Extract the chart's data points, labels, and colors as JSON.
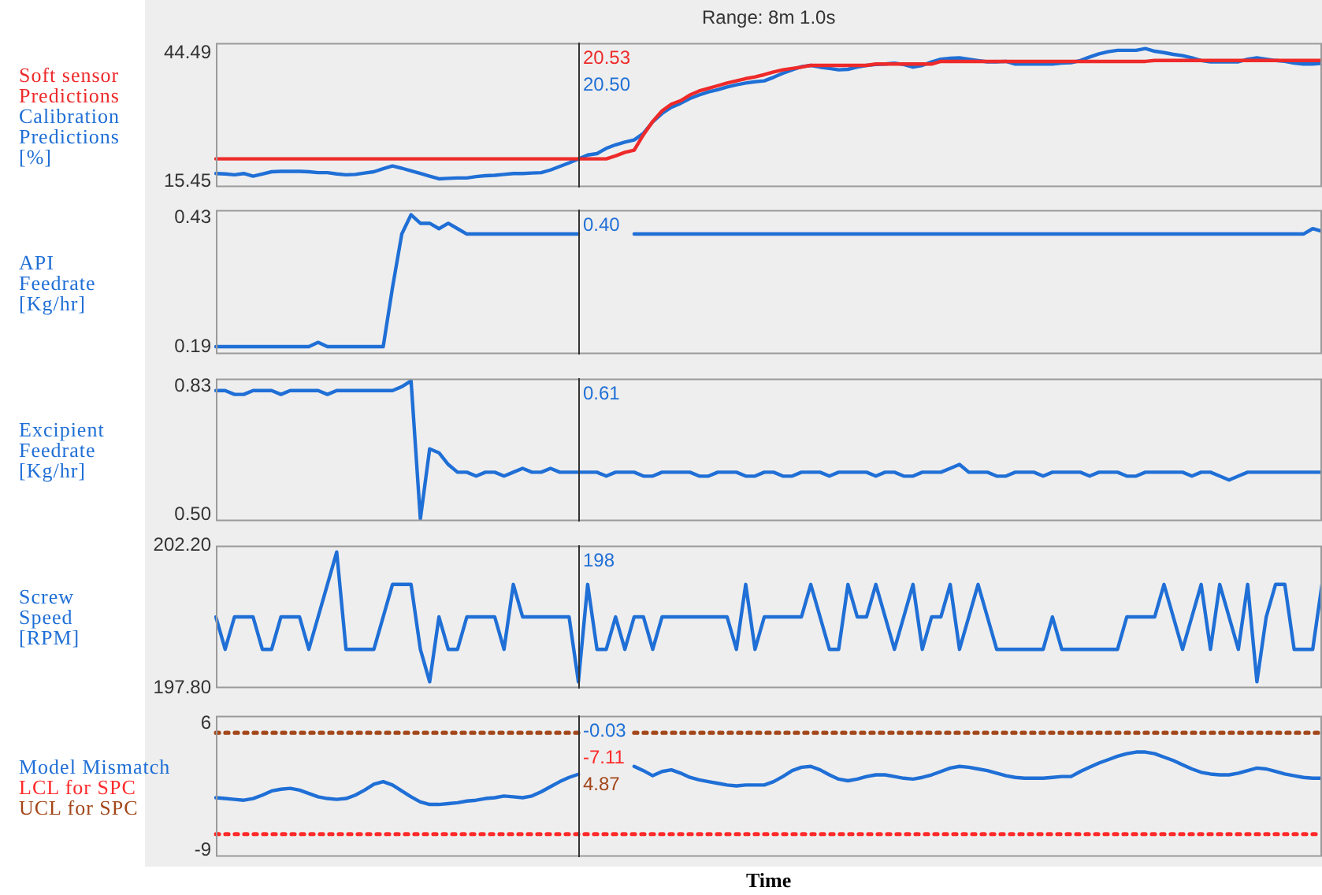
{
  "chart_data": [
    {
      "type": "line",
      "title": "Range: 8m 1.0s",
      "ylabel": "[%]",
      "legend": "left",
      "tick_labels": "y",
      "categories": [
        null,
        null,
        null,
        null,
        null,
        null,
        null,
        null,
        null,
        null,
        null,
        null,
        null,
        null,
        null,
        null,
        null,
        null,
        null,
        null,
        null,
        null,
        null,
        null,
        null,
        null,
        null,
        null,
        null,
        null,
        null,
        null,
        null,
        null,
        null,
        null,
        null,
        null,
        null,
        null,
        null,
        null,
        null,
        null,
        null,
        null,
        null,
        null,
        null,
        null,
        null,
        null,
        null,
        null,
        null,
        null,
        null,
        null,
        null,
        null,
        null,
        null,
        null,
        null,
        null,
        null,
        null,
        null,
        null,
        null,
        null,
        null,
        null,
        null,
        null,
        null,
        null,
        null,
        null,
        null,
        null,
        null,
        null,
        null,
        null,
        null,
        null,
        null,
        null,
        null,
        null,
        null,
        null,
        null,
        null,
        null,
        null,
        null,
        null,
        null,
        null,
        null,
        null,
        null,
        null,
        null,
        null,
        null,
        null,
        null,
        null,
        null,
        null,
        null,
        null,
        null,
        null,
        null,
        null,
        null
      ],
      "ylim": [
        14.1,
        46.8
      ],
      "yticks": [
        15.45,
        44.49
      ],
      "series": [
        {
          "name": "Soft sensor Predictions",
          "color": "#ee2a2a",
          "values": [
            20.53,
            20.53,
            20.53,
            20.53,
            20.53,
            20.53,
            20.53,
            20.53,
            20.53,
            20.53,
            20.53,
            20.53,
            20.53,
            20.53,
            20.53,
            20.53,
            20.53,
            20.53,
            20.53,
            20.53,
            20.53,
            20.53,
            20.53,
            20.53,
            20.53,
            20.53,
            20.53,
            20.53,
            20.53,
            20.53,
            20.53,
            20.53,
            20.53,
            20.53,
            20.53,
            20.53,
            20.53,
            20.53,
            20.53,
            20.53,
            20.53,
            20.53,
            20.53,
            21.2,
            22.0,
            22.5,
            26.0,
            29.0,
            31.4,
            32.9,
            33.7,
            35.0,
            35.9,
            36.5,
            37.1,
            37.7,
            38.2,
            38.7,
            39.1,
            39.6,
            40.2,
            40.7,
            41.0,
            41.3,
            41.7,
            41.7,
            41.7,
            41.7,
            41.7,
            41.7,
            41.7,
            42.0,
            42.0,
            42.0,
            42.0,
            42.0,
            42.0,
            42.0,
            42.6,
            42.6,
            42.6,
            42.6,
            42.6,
            42.6,
            42.6,
            42.6,
            42.6,
            42.6,
            42.6,
            42.6,
            42.6,
            42.6,
            42.6,
            42.6,
            42.6,
            42.6,
            42.6,
            42.6,
            42.6,
            42.6,
            42.6,
            42.8,
            42.8,
            42.8,
            42.8,
            42.8,
            42.8,
            42.8,
            42.8,
            42.8,
            42.8,
            42.8,
            42.8,
            42.8,
            42.8,
            42.8,
            42.8,
            42.8,
            42.8,
            42.8
          ]
        },
        {
          "name": "Calibration Predictions",
          "color": "#1f6fd6",
          "values": [
            17.2,
            17.1,
            16.9,
            17.2,
            16.6,
            17.1,
            17.6,
            17.7,
            17.7,
            17.7,
            17.6,
            17.4,
            17.4,
            17.1,
            16.9,
            17.0,
            17.3,
            17.6,
            18.3,
            18.9,
            18.4,
            17.8,
            17.2,
            16.6,
            16.0,
            16.1,
            16.2,
            16.2,
            16.5,
            16.7,
            16.8,
            17.0,
            17.2,
            17.2,
            17.3,
            17.4,
            18.0,
            18.8,
            19.6,
            20.5,
            21.4,
            21.7,
            22.9,
            23.7,
            24.3,
            24.8,
            26.3,
            28.9,
            30.8,
            32.2,
            33.1,
            34.2,
            35.0,
            35.7,
            36.2,
            36.8,
            37.3,
            37.7,
            38.0,
            38.2,
            39.0,
            39.9,
            40.7,
            41.4,
            41.7,
            41.3,
            41.0,
            40.7,
            40.8,
            41.3,
            41.7,
            41.9,
            42.0,
            42.2,
            41.9,
            41.3,
            41.7,
            42.5,
            43.1,
            43.3,
            43.4,
            43.1,
            42.8,
            42.5,
            42.5,
            42.6,
            42.0,
            42.0,
            42.0,
            42.0,
            42.0,
            42.2,
            42.3,
            42.8,
            43.6,
            44.3,
            44.8,
            45.1,
            45.1,
            45.1,
            45.5,
            44.9,
            44.6,
            44.2,
            43.9,
            43.4,
            42.8,
            42.5,
            42.5,
            42.5,
            42.5,
            43.1,
            43.4,
            43.1,
            42.8,
            42.6,
            42.2,
            42.0,
            42.0,
            42.2
          ]
        }
      ],
      "annotations": [
        "20.53",
        "20.50"
      ]
    },
    {
      "type": "line",
      "ylabel": "API Feedrate [Kg/hr]",
      "tick_labels": "y",
      "categories": [
        null,
        null,
        null,
        null,
        null,
        null,
        null,
        null,
        null,
        null,
        null,
        null,
        null,
        null,
        null,
        null,
        null,
        null,
        null,
        null,
        null,
        null,
        null,
        null,
        null,
        null,
        null,
        null,
        null,
        null,
        null,
        null,
        null,
        null,
        null,
        null,
        null,
        null,
        null,
        null,
        null,
        null,
        null,
        null,
        null,
        null,
        null,
        null,
        null,
        null,
        null,
        null,
        null,
        null,
        null,
        null,
        null,
        null,
        null,
        null,
        null,
        null,
        null,
        null,
        null,
        null,
        null,
        null,
        null,
        null,
        null,
        null,
        null,
        null,
        null,
        null,
        null,
        null,
        null,
        null,
        null,
        null,
        null,
        null,
        null,
        null,
        null,
        null,
        null,
        null,
        null,
        null,
        null,
        null,
        null,
        null,
        null,
        null,
        null,
        null,
        null,
        null,
        null,
        null,
        null,
        null,
        null,
        null,
        null,
        null,
        null,
        null,
        null,
        null,
        null,
        null,
        null,
        null,
        null,
        null
      ],
      "ylim": [
        0.176,
        0.445
      ],
      "yticks": [
        {
          "value": 0.43,
          "label": "0.43"
        },
        {
          "value": 0.19,
          "label": "0.19"
        }
      ],
      "series": [
        {
          "color": "#1f6fd6",
          "values": [
            0.19,
            0.19,
            0.19,
            0.19,
            0.19,
            0.19,
            0.19,
            0.19,
            0.19,
            0.19,
            0.19,
            0.198,
            0.19,
            0.19,
            0.19,
            0.19,
            0.19,
            0.19,
            0.19,
            0.3,
            0.4,
            0.436,
            0.42,
            0.42,
            0.41,
            0.42,
            0.41,
            0.4,
            0.4,
            0.4,
            0.4,
            0.4,
            0.4,
            0.4,
            0.4,
            0.4,
            0.4,
            0.4,
            0.4,
            0.4,
            null,
            null,
            null,
            null,
            null,
            0.4,
            0.4,
            0.4,
            0.4,
            0.4,
            0.4,
            0.4,
            0.4,
            0.4,
            0.4,
            0.4,
            0.4,
            0.4,
            0.4,
            0.4,
            0.4,
            0.4,
            0.4,
            0.4,
            0.4,
            0.4,
            0.4,
            0.4,
            0.4,
            0.4,
            0.4,
            0.4,
            0.4,
            0.4,
            0.4,
            0.4,
            0.4,
            0.4,
            0.4,
            0.4,
            0.4,
            0.4,
            0.4,
            0.4,
            0.4,
            0.4,
            0.4,
            0.4,
            0.4,
            0.4,
            0.4,
            0.4,
            0.4,
            0.4,
            0.4,
            0.4,
            0.4,
            0.4,
            0.4,
            0.4,
            0.4,
            0.4,
            0.4,
            0.4,
            0.4,
            0.4,
            0.4,
            0.4,
            0.4,
            0.4,
            0.4,
            0.4,
            0.4,
            0.4,
            0.4,
            0.4,
            0.4,
            0.4,
            0.41,
            0.405
          ]
        }
      ],
      "annotations": [
        "0.40"
      ]
    },
    {
      "type": "line",
      "ylabel": "Excipient Feedrate [Kg/hr]",
      "tick_labels": "y",
      "categories": [
        null,
        null,
        null,
        null,
        null,
        null,
        null,
        null,
        null,
        null,
        null,
        null,
        null,
        null,
        null,
        null,
        null,
        null,
        null,
        null,
        null,
        null,
        null,
        null,
        null,
        null,
        null,
        null,
        null,
        null,
        null,
        null,
        null,
        null,
        null,
        null,
        null,
        null,
        null,
        null,
        null,
        null,
        null,
        null,
        null,
        null,
        null,
        null,
        null,
        null,
        null,
        null,
        null,
        null,
        null,
        null,
        null,
        null,
        null,
        null,
        null,
        null,
        null,
        null,
        null,
        null,
        null,
        null,
        null,
        null,
        null,
        null,
        null,
        null,
        null,
        null,
        null,
        null,
        null,
        null,
        null,
        null,
        null,
        null,
        null,
        null,
        null,
        null,
        null,
        null,
        null,
        null,
        null,
        null,
        null,
        null,
        null,
        null,
        null,
        null,
        null,
        null,
        null,
        null,
        null,
        null,
        null,
        null,
        null,
        null,
        null,
        null,
        null,
        null,
        null,
        null,
        null,
        null,
        null,
        null
      ],
      "ylim": [
        0.484,
        0.851
      ],
      "yticks": [
        0.83,
        {
          "value": 0.5,
          "label": "0.50"
        }
      ],
      "series": [
        {
          "color": "#1f6fd6",
          "values": [
            0.82,
            0.82,
            0.81,
            0.81,
            0.82,
            0.82,
            0.82,
            0.81,
            0.82,
            0.82,
            0.82,
            0.82,
            0.81,
            0.82,
            0.82,
            0.82,
            0.82,
            0.82,
            0.82,
            0.82,
            0.83,
            0.845,
            0.49,
            0.67,
            0.66,
            0.63,
            0.61,
            0.61,
            0.6,
            0.61,
            0.61,
            0.6,
            0.61,
            0.62,
            0.61,
            0.61,
            0.62,
            0.61,
            0.61,
            0.61,
            0.61,
            0.61,
            0.6,
            0.61,
            0.61,
            0.61,
            0.6,
            0.6,
            0.61,
            0.61,
            0.61,
            0.61,
            0.6,
            0.6,
            0.61,
            0.61,
            0.61,
            0.6,
            0.6,
            0.61,
            0.61,
            0.6,
            0.6,
            0.61,
            0.61,
            0.61,
            0.6,
            0.61,
            0.61,
            0.61,
            0.61,
            0.6,
            0.61,
            0.61,
            0.6,
            0.6,
            0.61,
            0.61,
            0.61,
            0.62,
            0.63,
            0.61,
            0.61,
            0.61,
            0.6,
            0.6,
            0.61,
            0.61,
            0.61,
            0.6,
            0.61,
            0.61,
            0.61,
            0.61,
            0.6,
            0.61,
            0.61,
            0.61,
            0.6,
            0.6,
            0.61,
            0.61,
            0.61,
            0.61,
            0.61,
            0.6,
            0.61,
            0.61,
            0.6,
            0.59,
            0.6,
            0.61,
            0.61,
            0.61,
            0.61,
            0.61,
            0.61,
            0.61,
            0.61,
            0.61
          ]
        }
      ],
      "annotations": [
        "0.61"
      ]
    },
    {
      "type": "line",
      "ylabel": "Screw Speed [RPM]",
      "tick_labels": "y",
      "categories": [
        null,
        null,
        null,
        null,
        null,
        null,
        null,
        null,
        null,
        null,
        null,
        null,
        null,
        null,
        null,
        null,
        null,
        null,
        null,
        null,
        null,
        null,
        null,
        null,
        null,
        null,
        null,
        null,
        null,
        null,
        null,
        null,
        null,
        null,
        null,
        null,
        null,
        null,
        null,
        null,
        null,
        null,
        null,
        null,
        null,
        null,
        null,
        null,
        null,
        null,
        null,
        null,
        null,
        null,
        null,
        null,
        null,
        null,
        null,
        null,
        null,
        null,
        null,
        null,
        null,
        null,
        null,
        null,
        null,
        null,
        null,
        null,
        null,
        null,
        null,
        null,
        null,
        null,
        null,
        null,
        null,
        null,
        null,
        null,
        null,
        null,
        null,
        null,
        null,
        null,
        null,
        null,
        null,
        null,
        null,
        null,
        null,
        null,
        null,
        null,
        null,
        null,
        null,
        null,
        null,
        null,
        null,
        null,
        null,
        null,
        null,
        null,
        null,
        null,
        null,
        null,
        null,
        null,
        null,
        null
      ],
      "ylim": [
        197.8,
        202.2
      ],
      "yticks": [
        {
          "value": 202.2,
          "label": "202.20"
        },
        {
          "value": 197.8,
          "label": "197.80"
        }
      ],
      "series": [
        {
          "color": "#1f6fd6",
          "values": [
            200,
            199,
            200,
            200,
            200,
            199,
            199,
            200,
            200,
            200,
            199,
            200,
            201,
            202,
            199,
            199,
            199,
            199,
            200,
            201,
            201,
            201,
            199,
            198,
            200,
            199,
            199,
            200,
            200,
            200,
            200,
            199,
            201,
            200,
            200,
            200,
            200,
            200,
            200,
            198,
            201,
            199,
            199,
            200,
            199,
            200,
            200,
            199,
            200,
            200,
            200,
            200,
            200,
            200,
            200,
            200,
            199,
            201,
            199,
            200,
            200,
            200,
            200,
            200,
            201,
            200,
            199,
            199,
            201,
            200,
            200,
            201,
            200,
            199,
            200,
            201,
            199,
            200,
            200,
            201,
            199,
            200,
            201,
            200,
            199,
            199,
            199,
            199,
            199,
            199,
            200,
            199,
            199,
            199,
            199,
            199,
            199,
            199,
            200,
            200,
            200,
            200,
            201,
            200,
            199,
            200,
            201,
            199,
            201,
            200,
            199,
            201,
            198,
            200,
            201,
            201,
            199,
            199,
            199,
            201
          ]
        }
      ],
      "annotations": [
        "198"
      ]
    },
    {
      "type": "line",
      "xlabel": "Time",
      "legend": "left",
      "tick_labels": "y",
      "categories": [
        null,
        null,
        null,
        null,
        null,
        null,
        null,
        null,
        null,
        null,
        null,
        null,
        null,
        null,
        null,
        null,
        null,
        null,
        null,
        null,
        null,
        null,
        null,
        null,
        null,
        null,
        null,
        null,
        null,
        null,
        null,
        null,
        null,
        null,
        null,
        null,
        null,
        null,
        null,
        null,
        null,
        null,
        null,
        null,
        null,
        null,
        null,
        null,
        null,
        null,
        null,
        null,
        null,
        null,
        null,
        null,
        null,
        null,
        null,
        null,
        null,
        null,
        null,
        null,
        null,
        null,
        null,
        null,
        null,
        null,
        null,
        null,
        null,
        null,
        null,
        null,
        null,
        null,
        null,
        null,
        null,
        null,
        null,
        null,
        null,
        null,
        null,
        null,
        null,
        null,
        null,
        null,
        null,
        null,
        null,
        null,
        null,
        null,
        null,
        null,
        null,
        null,
        null,
        null,
        null,
        null,
        null,
        null,
        null,
        null,
        null,
        null,
        null,
        null,
        null,
        null,
        null,
        null,
        null,
        null
      ],
      "ylim": [
        -9.8,
        6.9
      ],
      "yticks": [
        6,
        -9
      ],
      "series": [
        {
          "name": "Model Mismatch",
          "color": "#1f6fd6",
          "values": [
            -2.8,
            -2.9,
            -3.0,
            -3.1,
            -2.9,
            -2.5,
            -2.0,
            -1.8,
            -1.7,
            -1.9,
            -2.3,
            -2.7,
            -2.9,
            -3.0,
            -2.9,
            -2.5,
            -1.9,
            -1.2,
            -0.9,
            -1.3,
            -2.0,
            -2.7,
            -3.3,
            -3.6,
            -3.6,
            -3.5,
            -3.4,
            -3.2,
            -3.1,
            -2.9,
            -2.8,
            -2.6,
            -2.7,
            -2.8,
            -2.6,
            -2.1,
            -1.5,
            -0.9,
            -0.4,
            -0.03,
            null,
            null,
            null,
            null,
            null,
            0.9,
            0.4,
            -0.2,
            0.3,
            0.5,
            0.1,
            -0.4,
            -0.7,
            -0.9,
            -1.1,
            -1.3,
            -1.4,
            -1.3,
            -1.3,
            -1.3,
            -0.9,
            -0.3,
            0.4,
            0.8,
            0.9,
            0.5,
            -0.1,
            -0.6,
            -0.8,
            -0.6,
            -0.3,
            -0.1,
            -0.1,
            -0.3,
            -0.5,
            -0.6,
            -0.4,
            -0.1,
            0.3,
            0.7,
            0.9,
            0.8,
            0.6,
            0.4,
            0.1,
            -0.2,
            -0.4,
            -0.5,
            -0.5,
            -0.5,
            -0.4,
            -0.3,
            -0.3,
            0.3,
            0.8,
            1.3,
            1.7,
            2.1,
            2.4,
            2.6,
            2.6,
            2.4,
            2.0,
            1.6,
            1.1,
            0.6,
            0.2,
            0.0,
            -0.1,
            -0.1,
            0.1,
            0.4,
            0.7,
            0.6,
            0.3,
            0.0,
            -0.2,
            -0.4,
            -0.5,
            -0.5
          ]
        },
        {
          "name": "LCL for SPC",
          "color": "#ff2a2a",
          "line_style": "dotted",
          "values": [
            -7.11,
            -7.11,
            -7.11,
            -7.11,
            -7.11,
            -7.11,
            -7.11,
            -7.11,
            -7.11,
            -7.11,
            -7.11,
            -7.11,
            -7.11,
            -7.11,
            -7.11,
            -7.11,
            -7.11,
            -7.11,
            -7.11,
            -7.11,
            -7.11,
            -7.11,
            -7.11,
            -7.11,
            -7.11,
            -7.11,
            -7.11,
            -7.11,
            -7.11,
            -7.11,
            -7.11,
            -7.11,
            -7.11,
            -7.11,
            -7.11,
            -7.11,
            -7.11,
            -7.11,
            -7.11,
            -7.11,
            -7.11,
            -7.11,
            -7.11,
            -7.11,
            -7.11,
            -7.11,
            -7.11,
            -7.11,
            -7.11,
            -7.11,
            -7.11,
            -7.11,
            -7.11,
            -7.11,
            -7.11,
            -7.11,
            -7.11,
            -7.11,
            -7.11,
            -7.11,
            -7.11,
            -7.11,
            -7.11,
            -7.11,
            -7.11,
            -7.11,
            -7.11,
            -7.11,
            -7.11,
            -7.11,
            -7.11,
            -7.11,
            -7.11,
            -7.11,
            -7.11,
            -7.11,
            -7.11,
            -7.11,
            -7.11,
            -7.11,
            -7.11,
            -7.11,
            -7.11,
            -7.11,
            -7.11,
            -7.11,
            -7.11,
            -7.11,
            -7.11,
            -7.11,
            -7.11,
            -7.11,
            -7.11,
            -7.11,
            -7.11,
            -7.11,
            -7.11,
            -7.11,
            -7.11,
            -7.11,
            -7.11,
            -7.11,
            -7.11,
            -7.11,
            -7.11,
            -7.11,
            -7.11,
            -7.11,
            -7.11,
            -7.11,
            -7.11,
            -7.11,
            -7.11,
            -7.11,
            -7.11,
            -7.11,
            -7.11,
            -7.11,
            -7.11,
            -7.11
          ]
        },
        {
          "name": "UCL for SPC",
          "color": "#a3471a",
          "line_style": "dotted",
          "values": [
            4.87,
            4.87,
            4.87,
            4.87,
            4.87,
            4.87,
            4.87,
            4.87,
            4.87,
            4.87,
            4.87,
            4.87,
            4.87,
            4.87,
            4.87,
            4.87,
            4.87,
            4.87,
            4.87,
            4.87,
            4.87,
            4.87,
            4.87,
            4.87,
            4.87,
            4.87,
            4.87,
            4.87,
            4.87,
            4.87,
            4.87,
            4.87,
            4.87,
            4.87,
            4.87,
            4.87,
            4.87,
            4.87,
            4.87,
            4.87,
            null,
            null,
            null,
            null,
            null,
            4.87,
            4.87,
            4.87,
            4.87,
            4.87,
            4.87,
            4.87,
            4.87,
            4.87,
            4.87,
            4.87,
            4.87,
            4.87,
            4.87,
            4.87,
            4.87,
            4.87,
            4.87,
            4.87,
            4.87,
            4.87,
            4.87,
            4.87,
            4.87,
            4.87,
            4.87,
            4.87,
            4.87,
            4.87,
            4.87,
            4.87,
            4.87,
            4.87,
            4.87,
            4.87,
            4.87,
            4.87,
            4.87,
            4.87,
            4.87,
            4.87,
            4.87,
            4.87,
            4.87,
            4.87,
            4.87,
            4.87,
            4.87,
            4.87,
            4.87,
            4.87,
            4.87,
            4.87,
            4.87,
            4.87,
            4.87,
            4.87,
            4.87,
            4.87,
            4.87,
            4.87,
            4.87,
            4.87,
            4.87,
            4.87,
            4.87,
            4.87,
            4.87,
            4.87,
            4.87,
            4.87,
            4.87,
            4.87,
            4.87,
            4.87
          ]
        }
      ],
      "annotations": [
        "-0.03",
        "-7.11",
        "4.87"
      ]
    }
  ]
}
